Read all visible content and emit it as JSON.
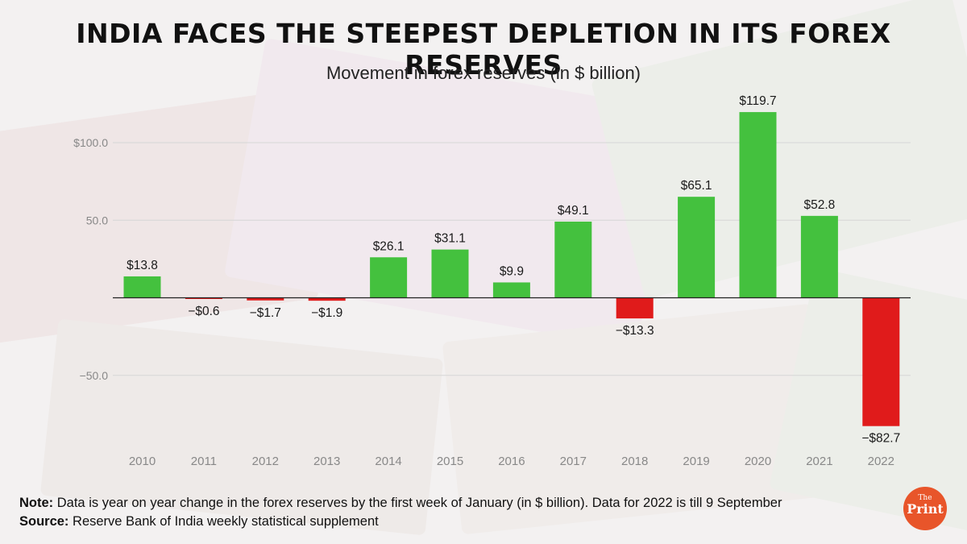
{
  "header": {
    "title": "INDIA FACES THE STEEPEST DEPLETION IN ITS FOREX RESERVES",
    "subtitle": "Movement in forex reserves (in $ billion)"
  },
  "chart_data": {
    "type": "bar",
    "categories": [
      "2010",
      "2011",
      "2012",
      "2013",
      "2014",
      "2015",
      "2016",
      "2017",
      "2018",
      "2019",
      "2020",
      "2021",
      "2022"
    ],
    "values": [
      13.8,
      -0.6,
      -1.7,
      -1.9,
      26.1,
      31.1,
      9.9,
      49.1,
      -13.3,
      65.1,
      119.7,
      52.8,
      -82.7
    ],
    "data_labels": [
      "$13.8",
      "−$0.6",
      "−$1.7",
      "−$1.9",
      "$26.1",
      "$31.1",
      "$9.9",
      "$49.1",
      "−$13.3",
      "$65.1",
      "$119.7",
      "$52.8",
      "−$82.7"
    ],
    "yticks": [
      100,
      50,
      -50
    ],
    "ytick_labels": [
      "$100.0",
      "50.0",
      "−50.0"
    ],
    "ylim": [
      -90,
      130
    ],
    "grid": true,
    "xlabel": "",
    "ylabel": "",
    "colors": {
      "positive": "#44c13e",
      "negative": "#e01b1b",
      "grid": "#d6d6d6",
      "axis": "#222222",
      "tick_text": "#888888"
    }
  },
  "footer": {
    "note_label": "Note:",
    "note_text": " Data is year on year change in the forex reserves by the first week of January (in $ billion). Data for 2022 is till 9 September",
    "source_label": "Source:",
    "source_text": " Reserve Bank of India weekly statistical supplement"
  },
  "logo": {
    "the": "The",
    "print": "Print"
  }
}
